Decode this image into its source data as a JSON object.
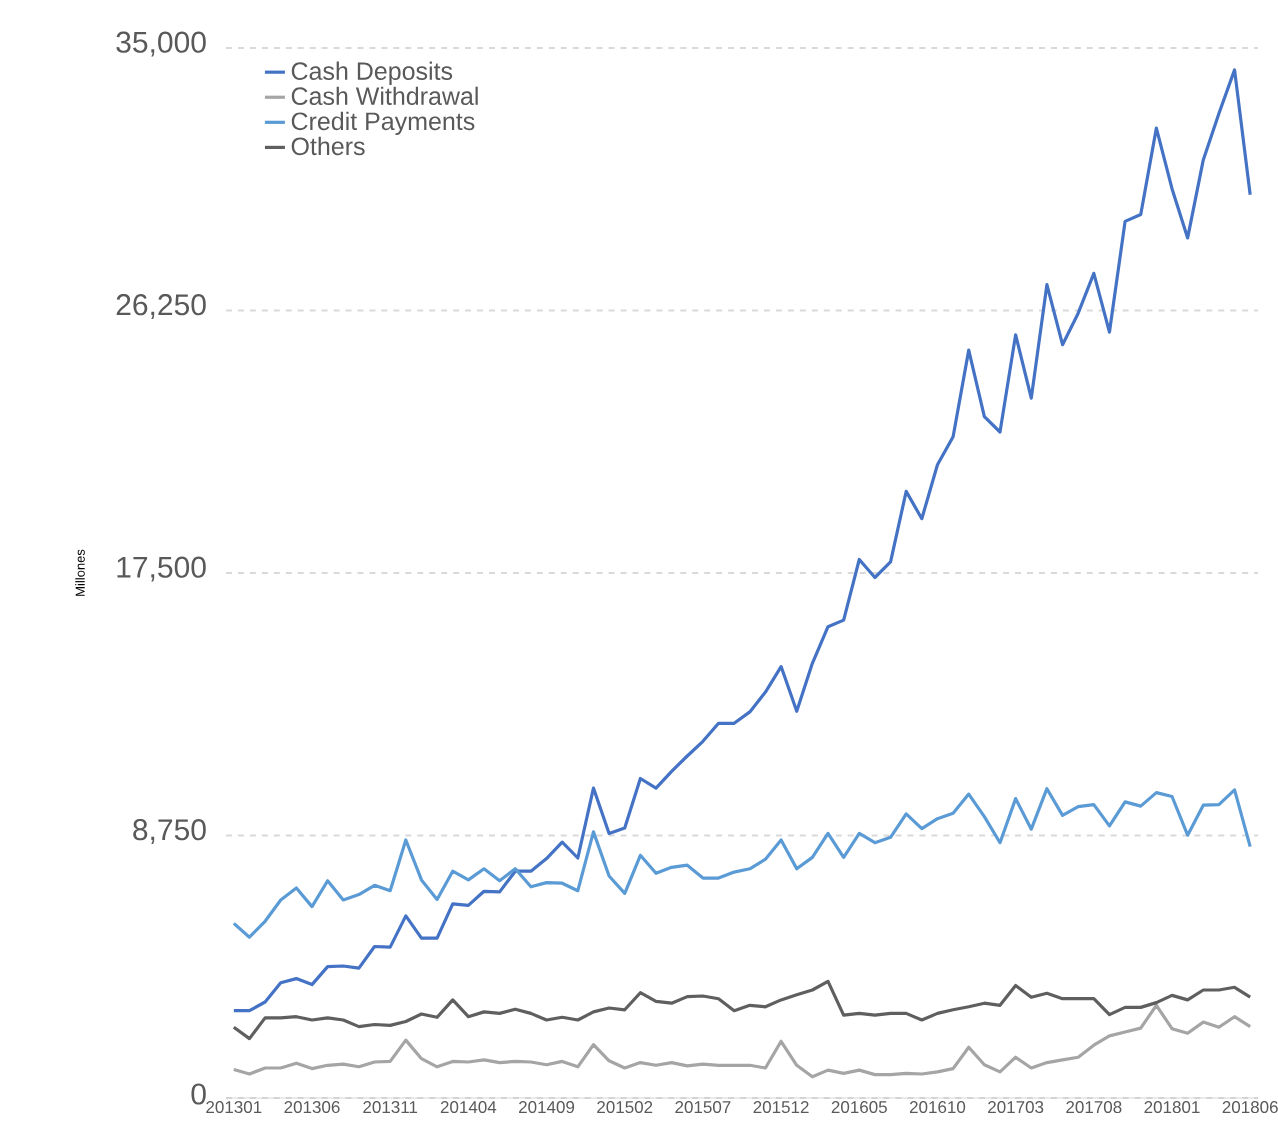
{
  "chart_data": {
    "type": "line",
    "ylabel": "Millones",
    "categories": [
      "201301",
      null,
      null,
      null,
      null,
      "201306",
      null,
      null,
      null,
      null,
      "201311",
      null,
      null,
      null,
      null,
      "201404",
      null,
      null,
      null,
      null,
      "201409",
      null,
      null,
      null,
      null,
      "201502",
      null,
      null,
      null,
      null,
      "201507",
      null,
      null,
      null,
      null,
      "201512",
      null,
      null,
      null,
      null,
      "201605",
      null,
      null,
      null,
      null,
      "201610",
      null,
      null,
      null,
      null,
      "201703",
      null,
      null,
      null,
      null,
      "201708",
      null,
      null,
      null,
      null,
      "201801",
      null,
      null,
      null,
      null,
      "201806"
    ],
    "series": [
      {
        "name": "Cash Deposits",
        "color": "#4472c4",
        "values": [
          2910,
          2910,
          3200,
          3840,
          3980,
          3780,
          4380,
          4400,
          4330,
          5050,
          5030,
          6070,
          5330,
          5330,
          6470,
          6420,
          6890,
          6870,
          7560,
          7560,
          7980,
          8530,
          8000,
          10330,
          8820,
          9000,
          10650,
          10330,
          10890,
          11400,
          11890,
          12490,
          12490,
          12870,
          13530,
          14380,
          12890,
          14490,
          15710,
          15930,
          17950,
          17350,
          17870,
          20220,
          19310,
          21110,
          22040,
          24930,
          22710,
          22200,
          25440,
          23330,
          27110,
          25110,
          26160,
          27490,
          25530,
          29220,
          29450,
          32330,
          30310,
          28670,
          31270,
          32820,
          34270,
          30110
        ]
      },
      {
        "name": "Cash Withdrawal",
        "color": "#a5a5a5",
        "values": [
          950,
          800,
          1000,
          1000,
          1160,
          980,
          1090,
          1130,
          1040,
          1200,
          1220,
          1930,
          1310,
          1040,
          1220,
          1200,
          1270,
          1180,
          1220,
          1200,
          1110,
          1220,
          1040,
          1780,
          1240,
          1000,
          1180,
          1090,
          1180,
          1070,
          1130,
          1090,
          1090,
          1090,
          1000,
          1890,
          1090,
          710,
          930,
          820,
          930,
          780,
          780,
          820,
          800,
          870,
          980,
          1690,
          1110,
          870,
          1360,
          1000,
          1180,
          1270,
          1360,
          1760,
          2070,
          2200,
          2330,
          3090,
          2310,
          2160,
          2530,
          2360,
          2710,
          2380
        ]
      },
      {
        "name": "Credit Payments",
        "color": "#5b9bd5",
        "values": [
          5820,
          5360,
          5890,
          6600,
          7000,
          6380,
          7240,
          6600,
          6780,
          7090,
          6910,
          8600,
          7270,
          6620,
          7560,
          7270,
          7640,
          7240,
          7640,
          7040,
          7180,
          7160,
          6910,
          8870,
          7400,
          6820,
          8090,
          7490,
          7690,
          7760,
          7330,
          7330,
          7530,
          7640,
          7960,
          8600,
          7640,
          8020,
          8820,
          8020,
          8820,
          8510,
          8690,
          9470,
          8980,
          9310,
          9490,
          10130,
          9380,
          8510,
          9980,
          8960,
          10310,
          9420,
          9710,
          9780,
          9070,
          9870,
          9730,
          10180,
          10050,
          8760,
          9760,
          9780,
          10270,
          8380
        ]
      },
      {
        "name": "Others",
        "color": "#5f5f5f",
        "values": [
          2360,
          1980,
          2670,
          2670,
          2710,
          2600,
          2670,
          2600,
          2380,
          2450,
          2420,
          2550,
          2800,
          2690,
          3270,
          2710,
          2870,
          2820,
          2960,
          2820,
          2600,
          2690,
          2600,
          2870,
          3000,
          2940,
          3510,
          3220,
          3160,
          3380,
          3400,
          3310,
          2910,
          3090,
          3040,
          3270,
          3440,
          3600,
          3890,
          2760,
          2820,
          2760,
          2820,
          2820,
          2600,
          2820,
          2940,
          3040,
          3160,
          3090,
          3750,
          3360,
          3490,
          3310,
          3310,
          3310,
          2780,
          3020,
          3020,
          3180,
          3420,
          3270,
          3600,
          3600,
          3690,
          3360
        ]
      }
    ],
    "ylim": [
      0,
      35000
    ],
    "yticks": [
      0,
      {
        "value": 8750,
        "label": "8,750"
      },
      {
        "value": 17500,
        "label": "17,500"
      },
      {
        "value": 26250,
        "label": "26,250"
      },
      {
        "value": 35000,
        "label": "35,000"
      }
    ],
    "grid": "y",
    "legend": "top left",
    "line_style": "solid"
  }
}
